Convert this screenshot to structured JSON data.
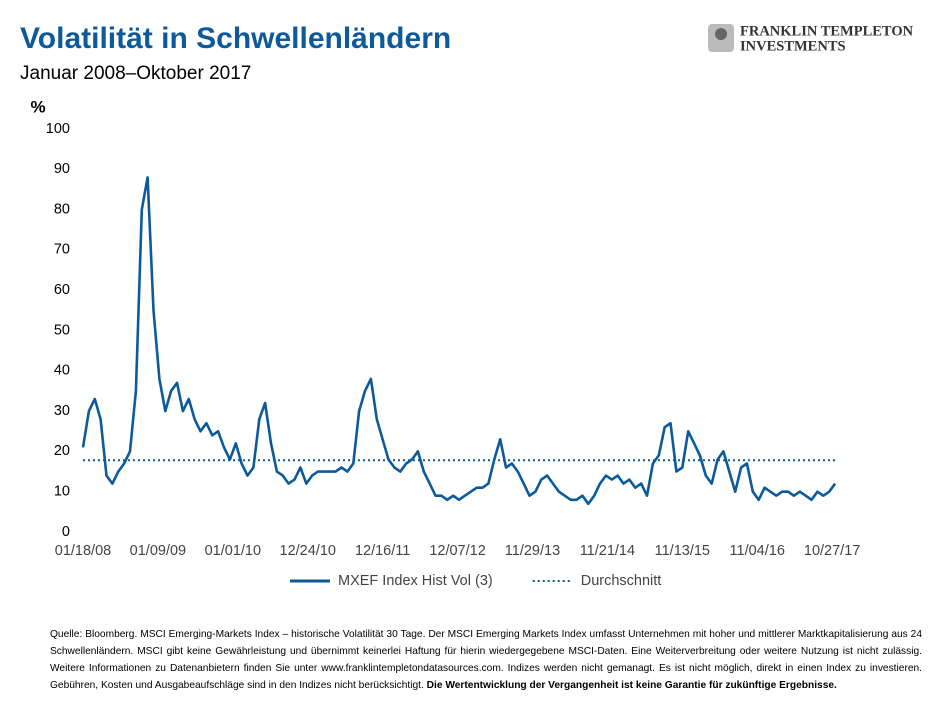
{
  "header": {
    "brand_line1": "FRANKLIN TEMPLETON",
    "brand_line2": "INVESTMENTS"
  },
  "chart_data": {
    "type": "line",
    "title": "Volatilität in Schwellenländern",
    "subtitle": "Januar 2008–Oktober 2017",
    "y_label": "%",
    "x": [
      "01/18/08",
      "02/15/08",
      "03/14/08",
      "04/11/08",
      "05/09/08",
      "06/06/08",
      "07/04/08",
      "08/01/08",
      "08/29/08",
      "09/26/08",
      "10/24/08",
      "11/21/08",
      "12/19/08",
      "01/16/09",
      "02/13/09",
      "03/13/09",
      "04/10/09",
      "05/08/09",
      "06/05/09",
      "07/03/09",
      "07/31/09",
      "08/28/09",
      "09/25/09",
      "10/23/09",
      "11/20/09",
      "12/18/09",
      "01/15/10",
      "02/12/10",
      "03/12/10",
      "04/09/10",
      "05/07/10",
      "06/04/10",
      "07/02/10",
      "07/30/10",
      "08/27/10",
      "09/24/10",
      "10/22/10",
      "11/19/10",
      "12/17/10",
      "01/14/11",
      "02/11/11",
      "03/11/11",
      "04/08/11",
      "05/06/11",
      "06/03/11",
      "07/01/11",
      "07/29/11",
      "08/26/11",
      "09/23/11",
      "10/21/11",
      "11/18/11",
      "12/16/11",
      "01/13/12",
      "02/10/12",
      "03/09/12",
      "04/06/12",
      "05/04/12",
      "06/01/12",
      "06/29/12",
      "07/27/12",
      "08/24/12",
      "09/21/12",
      "10/19/12",
      "11/16/12",
      "12/14/12",
      "01/11/13",
      "02/08/13",
      "03/08/13",
      "04/05/13",
      "05/03/13",
      "05/31/13",
      "06/28/13",
      "07/26/13",
      "08/23/13",
      "09/20/13",
      "10/18/13",
      "11/15/13",
      "12/13/13",
      "01/10/14",
      "02/07/14",
      "03/07/14",
      "04/04/14",
      "05/02/14",
      "05/30/14",
      "06/27/14",
      "07/25/14",
      "08/22/14",
      "09/19/14",
      "10/17/14",
      "11/14/14",
      "12/12/14",
      "01/09/15",
      "02/06/15",
      "03/06/15",
      "04/03/15",
      "05/01/15",
      "05/29/15",
      "06/26/15",
      "07/24/15",
      "08/21/15",
      "09/18/15",
      "10/16/15",
      "11/13/15",
      "12/11/15",
      "01/08/16",
      "02/05/16",
      "03/04/16",
      "04/01/16",
      "04/29/16",
      "05/27/16",
      "06/24/16",
      "07/22/16",
      "08/19/16",
      "09/16/16",
      "10/14/16",
      "11/11/16",
      "12/09/16",
      "01/06/17",
      "02/03/17",
      "03/03/17",
      "03/31/17",
      "04/28/17",
      "05/26/17",
      "06/23/17",
      "07/21/17",
      "08/18/17",
      "09/15/17",
      "10/13/17",
      "11/10/17"
    ],
    "series": [
      {
        "name": "MXEF Index Hist Vol (3)",
        "color": "#0d5a9a",
        "values": [
          21,
          30,
          33,
          28,
          14,
          12,
          15,
          17,
          20,
          35,
          80,
          88,
          55,
          38,
          30,
          35,
          37,
          30,
          33,
          28,
          25,
          27,
          24,
          25,
          21,
          18,
          22,
          17,
          14,
          16,
          28,
          32,
          22,
          15,
          14,
          12,
          13,
          16,
          12,
          14,
          15,
          15,
          15,
          15,
          16,
          15,
          17,
          30,
          35,
          38,
          28,
          23,
          18,
          16,
          15,
          17,
          18,
          20,
          15,
          12,
          9,
          9,
          8,
          9,
          8,
          9,
          10,
          11,
          11,
          12,
          18,
          23,
          16,
          17,
          15,
          12,
          9,
          10,
          13,
          14,
          12,
          10,
          9,
          8,
          8,
          9,
          7,
          9,
          12,
          14,
          13,
          14,
          12,
          13,
          11,
          12,
          9,
          17,
          19,
          26,
          27,
          15,
          16,
          25,
          22,
          19,
          14,
          12,
          18,
          20,
          15,
          10,
          16,
          17,
          10,
          8,
          11,
          10,
          9,
          10,
          10,
          9,
          10,
          9,
          8,
          10,
          9,
          10,
          12
        ]
      },
      {
        "name": "Durchschnitt",
        "color": "#0d5a9a",
        "dash": "dotted",
        "value": 17.8
      }
    ],
    "xlim": [
      "01/18/08",
      "11/24/17"
    ],
    "xticks": [
      "01/18/08",
      "01/09/09",
      "01/01/10",
      "12/24/10",
      "12/16/11",
      "12/07/12",
      "11/29/13",
      "11/21/14",
      "11/13/15",
      "11/04/16",
      "10/27/17"
    ],
    "ylim": [
      0,
      100
    ],
    "yticks": [
      0,
      10,
      20,
      30,
      40,
      50,
      60,
      70,
      80,
      90,
      100
    ],
    "grid": false,
    "legend": "bottom"
  },
  "footnote": {
    "text": "Quelle: Bloomberg. MSCI Emerging-Markets Index – historische Volatilität 30 Tage. Der MSCI Emerging Markets Index umfasst Unternehmen mit hoher und mittlerer Marktkapitalisierung aus 24 Schwellenländern. MSCI gibt keine Gewährleistung und übernimmt keinerlei Haftung für hierin wiedergegebene MSCI-Daten. Eine Weiterverbreitung oder weitere Nutzung ist nicht zulässig. Weitere Informationen zu Datenanbietern finden Sie unter www.franklintempletondatasources.com. Indizes werden nicht gemanagt. Es ist nicht möglich, direkt in einen Index zu investieren. Gebühren, Kosten und Ausgabeaufschläge sind in den Indizes nicht berücksichtigt.",
    "bold": "Die Wertentwicklung der Vergangenheit ist keine Garantie für zukünftige Ergebnisse."
  }
}
